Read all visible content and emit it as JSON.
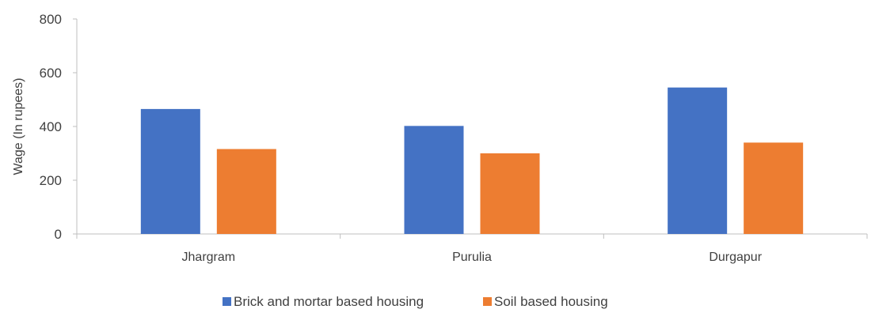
{
  "chart_data": {
    "type": "bar",
    "title": "",
    "xlabel": "",
    "ylabel": "Wage  (In rupees)",
    "ylim": [
      0,
      800
    ],
    "yticks": [
      0,
      200,
      400,
      600,
      800
    ],
    "categories": [
      "Jhargram",
      "Purulia",
      "Durgapur"
    ],
    "series": [
      {
        "name": "Brick and mortar based housing",
        "color": "#4472C4",
        "values": [
          465,
          402,
          545
        ]
      },
      {
        "name": "Soil based housing",
        "color": "#ED7D31",
        "values": [
          316,
          300,
          340
        ]
      }
    ],
    "grid": false,
    "legend_position": "bottom"
  }
}
